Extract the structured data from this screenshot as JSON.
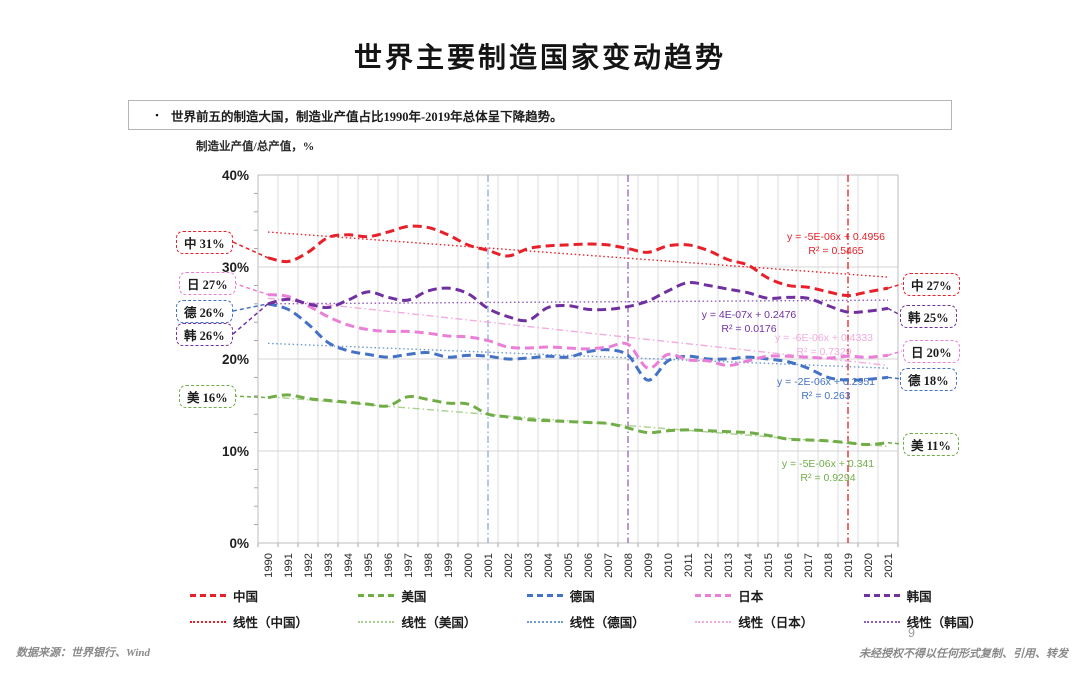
{
  "page": {
    "title": "世界主要制造国家变动趋势",
    "bullet_marker": "▪",
    "bullet": "世界前五的制造大国，制造业产值占比1990年-2019年总体呈下降趋势。",
    "footer_left": "数据来源：世界银行、Wind",
    "page_number": "9",
    "footer_right": "未经授权不得以任何形式复制、引用、转发"
  },
  "chart_data": {
    "type": "line",
    "title": "",
    "xlabel": "",
    "ylabel": "制造业产值/总产值，%",
    "ylim": [
      0,
      40
    ],
    "yticks": [
      {
        "value": 40,
        "label": "40%"
      },
      {
        "value": 30,
        "label": "30%"
      },
      {
        "value": 20,
        "label": "20%"
      },
      {
        "value": 10,
        "label": "10%"
      },
      {
        "value": 0,
        "label": "0%"
      }
    ],
    "grid": true,
    "legend_position": "bottom",
    "x": [
      1990,
      1991,
      1992,
      1993,
      1994,
      1995,
      1996,
      1997,
      1998,
      1999,
      2000,
      2001,
      2002,
      2003,
      2004,
      2005,
      2006,
      2007,
      2008,
      2009,
      2010,
      2011,
      2012,
      2013,
      2014,
      2015,
      2016,
      2017,
      2018,
      2019,
      2020,
      2021
    ],
    "series": [
      {
        "name": "中国",
        "key": "china",
        "color": "#e8202a",
        "label_left": "中 31%",
        "label_right": "中 27%",
        "values": [
          31.0,
          30.6,
          31.6,
          33.2,
          33.5,
          33.3,
          33.8,
          34.4,
          34.3,
          33.5,
          32.4,
          31.8,
          31.2,
          32.0,
          32.3,
          32.4,
          32.5,
          32.4,
          32.0,
          31.6,
          32.3,
          32.4,
          31.8,
          30.8,
          30.2,
          28.8,
          28.0,
          27.8,
          27.3,
          26.9,
          27.3,
          27.7
        ]
      },
      {
        "name": "美国",
        "key": "usa",
        "color": "#71ad47",
        "label_left": "美 16%",
        "label_right": "美 11%",
        "values": [
          15.8,
          16.1,
          15.7,
          15.5,
          15.3,
          15.1,
          14.9,
          15.9,
          15.6,
          15.2,
          15.1,
          14.0,
          13.7,
          13.4,
          13.3,
          13.2,
          13.1,
          13.0,
          12.5,
          12.0,
          12.2,
          12.3,
          12.2,
          12.1,
          12.0,
          11.7,
          11.3,
          11.2,
          11.1,
          10.9,
          10.7,
          10.9
        ]
      },
      {
        "name": "德国",
        "key": "germany",
        "color": "#4472c4",
        "label_left": "德 26%",
        "label_right": "德 18%",
        "values": [
          26.0,
          25.4,
          23.8,
          21.8,
          20.9,
          20.5,
          20.2,
          20.5,
          20.7,
          20.2,
          20.4,
          20.3,
          20.0,
          20.1,
          20.3,
          20.2,
          20.8,
          21.0,
          20.4,
          17.7,
          19.8,
          20.3,
          20.0,
          20.0,
          20.2,
          20.0,
          19.7,
          19.0,
          18.0,
          17.7,
          17.8,
          18.0
        ]
      },
      {
        "name": "日本",
        "key": "japan",
        "color": "#ea7fd8",
        "label_left": "日 27%",
        "label_right": "日 20%",
        "values": [
          27.0,
          26.8,
          25.8,
          24.6,
          23.7,
          23.2,
          23.0,
          23.0,
          22.8,
          22.5,
          22.4,
          22.0,
          21.3,
          21.2,
          21.3,
          21.2,
          21.1,
          21.3,
          21.6,
          19.0,
          20.5,
          19.9,
          19.8,
          19.3,
          19.8,
          20.3,
          20.3,
          20.2,
          20.1,
          20.3,
          20.2,
          20.4
        ]
      },
      {
        "name": "韩国",
        "key": "korea",
        "color": "#7030a0",
        "label_left": "韩 26%",
        "label_right": "韩 25%",
        "values": [
          26.0,
          26.5,
          26.0,
          25.6,
          26.4,
          27.3,
          26.7,
          26.4,
          27.4,
          27.7,
          27.1,
          25.5,
          24.6,
          24.2,
          25.6,
          25.8,
          25.4,
          25.4,
          25.7,
          26.3,
          27.4,
          28.3,
          28.0,
          27.6,
          27.2,
          26.6,
          26.7,
          26.6,
          25.8,
          25.1,
          25.2,
          25.5
        ]
      }
    ],
    "trendlines": [
      {
        "name": "线性（中国）",
        "color": "#e8202a",
        "style": "dotted",
        "start": 33.8,
        "end": 28.9,
        "equation": "y = -5E-06x + 0.4956",
        "r2": "R² = 0.5465"
      },
      {
        "name": "线性（美国）",
        "color": "#a9d18e",
        "style": "dashdot",
        "start": 15.9,
        "end": 10.5,
        "equation": "y = -5E-06x + 0.341",
        "r2": "R² = 0.9294"
      },
      {
        "name": "线性（德国）",
        "color": "#6f9ad0",
        "style": "dotted",
        "start": 21.7,
        "end": 19.0,
        "equation": "y = -2E-06x + 0.2951",
        "r2": "R² = 0.263"
      },
      {
        "name": "线性（日本）",
        "color": "#f2acdf",
        "style": "dashdot",
        "start": 26.6,
        "end": 19.3,
        "equation": "y = -6E-06x + 0.4333",
        "r2": "R² = 0.7329"
      },
      {
        "name": "线性（韩国）",
        "color": "#8f5bbd",
        "style": "dotted",
        "start": 26.0,
        "end": 26.4,
        "equation": "y = 4E-07x + 0.2476",
        "r2": "R² = 0.0176"
      }
    ],
    "ref_lines": [
      {
        "x": 2001,
        "color": "#8faadc"
      },
      {
        "x": 2008,
        "color": "#9a5fbd"
      },
      {
        "x": 2019,
        "color": "#e02020"
      }
    ]
  }
}
